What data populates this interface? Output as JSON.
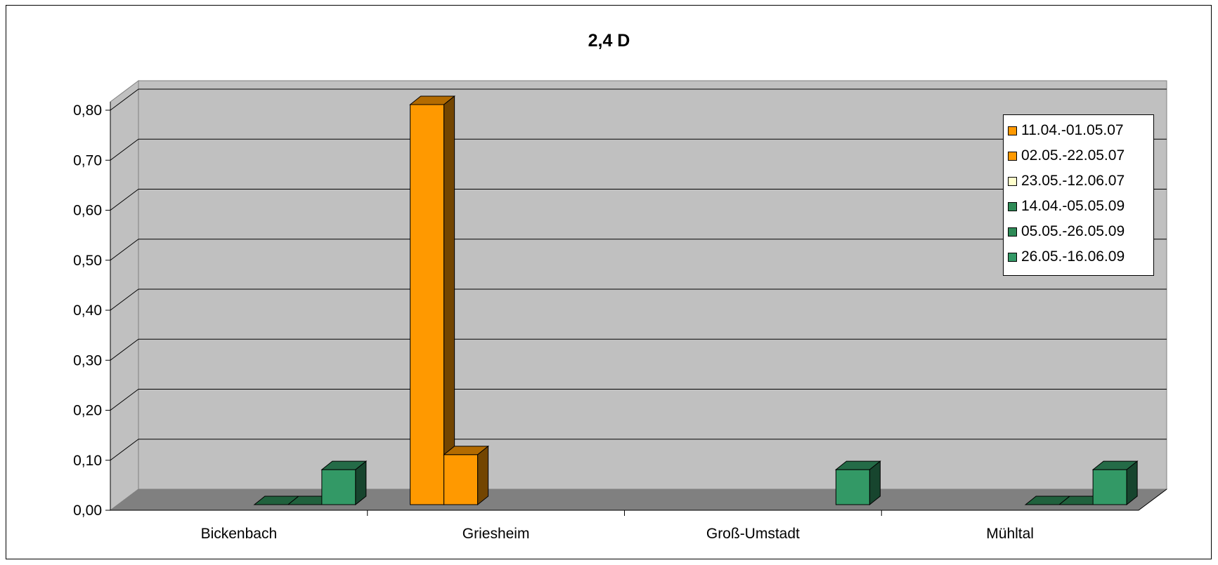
{
  "chart_data": {
    "type": "bar",
    "title": "2,4 D",
    "xlabel": "",
    "ylabel": "",
    "categories": [
      "Bickenbach",
      "Griesheim",
      "Groß-Umstadt",
      "Mühltal"
    ],
    "ylim": [
      0,
      0.8
    ],
    "yticks": [
      "0,00",
      "0,10",
      "0,20",
      "0,30",
      "0,40",
      "0,50",
      "0,60",
      "0,70",
      "0,80"
    ],
    "grid": true,
    "legend_position": "top-right",
    "three_d": true,
    "series": [
      {
        "name": "11.04.-01.05.07",
        "color": "#FF9900",
        "values": [
          null,
          0.8,
          null,
          null
        ]
      },
      {
        "name": "02.05.-22.05.07",
        "color": "#FF9900",
        "values": [
          null,
          0.1,
          null,
          null
        ]
      },
      {
        "name": "23.05.-12.06.07",
        "color": "#FFFFCC",
        "values": [
          null,
          null,
          null,
          null
        ]
      },
      {
        "name": "14.04.-05.05.09",
        "color": "#2E8B57",
        "values": [
          0.0,
          null,
          null,
          0.0
        ]
      },
      {
        "name": "05.05.-26.05.09",
        "color": "#2E8B57",
        "values": [
          0.0,
          null,
          null,
          0.0
        ]
      },
      {
        "name": "26.05.-16.06.09",
        "color": "#339966",
        "values": [
          0.07,
          null,
          0.07,
          0.07
        ]
      }
    ]
  }
}
